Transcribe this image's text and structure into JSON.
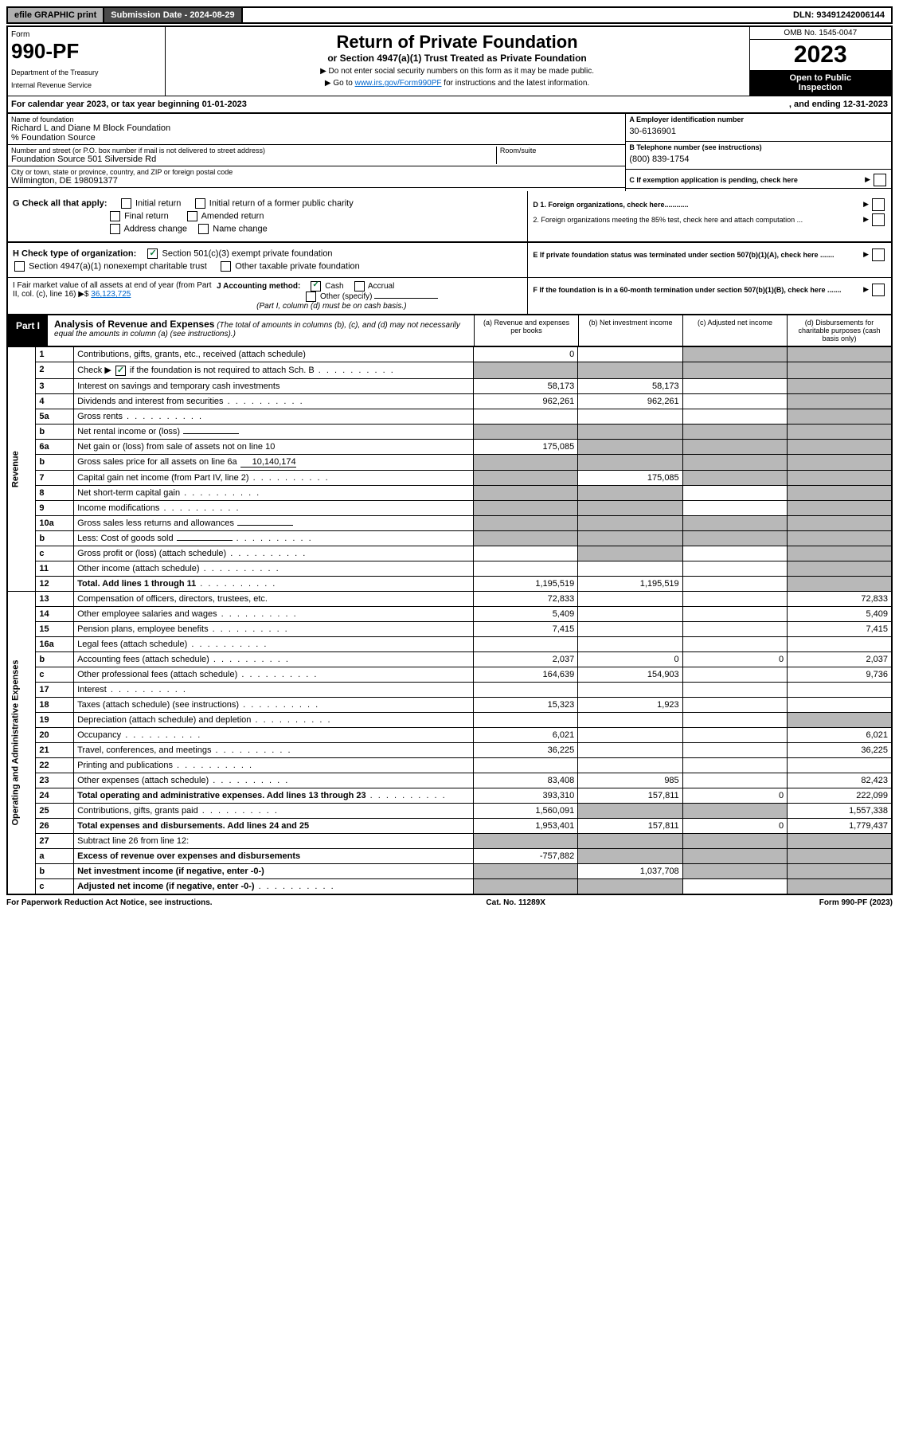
{
  "topbar": {
    "efile": "efile GRAPHIC print",
    "sub_date_label": "Submission Date - 2024-08-29",
    "dln_label": "DLN: 93491242006144"
  },
  "header": {
    "form_label": "Form",
    "form_num": "990-PF",
    "dept": "Department of the Treasury",
    "irs": "Internal Revenue Service",
    "title": "Return of Private Foundation",
    "subtitle": "or Section 4947(a)(1) Trust Treated as Private Foundation",
    "note1": "▶ Do not enter social security numbers on this form as it may be made public.",
    "note2_pre": "▶ Go to ",
    "note2_link": "www.irs.gov/Form990PF",
    "note2_post": " for instructions and the latest information.",
    "omb": "OMB No. 1545-0047",
    "year": "2023",
    "inspection1": "Open to Public",
    "inspection2": "Inspection"
  },
  "cal_year": {
    "left": "For calendar year 2023, or tax year beginning 01-01-2023",
    "right": ", and ending 12-31-2023"
  },
  "ident": {
    "name_label": "Name of foundation",
    "name": "Richard L and Diane M Block Foundation",
    "care_of": "% Foundation Source",
    "addr_label": "Number and street (or P.O. box number if mail is not delivered to street address)",
    "addr": "Foundation Source 501 Silverside Rd",
    "room_label": "Room/suite",
    "city_label": "City or town, state or province, country, and ZIP or foreign postal code",
    "city": "Wilmington, DE  198091377",
    "a_label": "A Employer identification number",
    "a_val": "30-6136901",
    "b_label": "B Telephone number (see instructions)",
    "b_val": "(800) 839-1754",
    "c_label": "C If exemption application is pending, check here"
  },
  "checks": {
    "g_label": "G Check all that apply:",
    "g_items": [
      "Initial return",
      "Initial return of a former public charity",
      "Final return",
      "Amended return",
      "Address change",
      "Name change"
    ],
    "h_label": "H Check type of organization:",
    "h1": "Section 501(c)(3) exempt private foundation",
    "h2": "Section 4947(a)(1) nonexempt charitable trust",
    "h3": "Other taxable private foundation",
    "i_label": "I Fair market value of all assets at end of year (from Part II, col. (c), line 16) ▶$",
    "i_val": "36,123,725",
    "j_label": "J Accounting method:",
    "j_cash": "Cash",
    "j_accrual": "Accrual",
    "j_other": "Other (specify)",
    "j_note": "(Part I, column (d) must be on cash basis.)",
    "d1": "D 1. Foreign organizations, check here............",
    "d2": "2. Foreign organizations meeting the 85% test, check here and attach computation ...",
    "e": "E  If private foundation status was terminated under section 507(b)(1)(A), check here .......",
    "f": "F  If the foundation is in a 60-month termination under section 507(b)(1)(B), check here .......  "
  },
  "part1": {
    "tab": "Part I",
    "title": "Analysis of Revenue and Expenses",
    "note": "(The total of amounts in columns (b), (c), and (d) may not necessarily equal the amounts in column (a) (see instructions).)",
    "col_a": "(a) Revenue and expenses per books",
    "col_b": "(b) Net investment income",
    "col_c": "(c) Adjusted net income",
    "col_d": "(d) Disbursements for charitable purposes (cash basis only)",
    "side_rev": "Revenue",
    "side_exp": "Operating and Administrative Expenses"
  },
  "rows": [
    {
      "n": "1",
      "d": "Contributions, gifts, grants, etc., received (attach schedule)",
      "a": "0",
      "b": "",
      "c": "s",
      "dd": "s"
    },
    {
      "n": "2",
      "d": "Check ▶ ☑ if the foundation is not required to attach Sch. B",
      "dots": 1,
      "a": "s",
      "b": "s",
      "c": "s",
      "dd": "s"
    },
    {
      "n": "3",
      "d": "Interest on savings and temporary cash investments",
      "a": "58,173",
      "b": "58,173",
      "c": "",
      "dd": "s"
    },
    {
      "n": "4",
      "d": "Dividends and interest from securities",
      "dots": 1,
      "a": "962,261",
      "b": "962,261",
      "c": "",
      "dd": "s"
    },
    {
      "n": "5a",
      "d": "Gross rents",
      "dots": 1,
      "a": "",
      "b": "",
      "c": "",
      "dd": "s"
    },
    {
      "n": "b",
      "d": "Net rental income or (loss)",
      "inline": "",
      "a": "s",
      "b": "s",
      "c": "s",
      "dd": "s"
    },
    {
      "n": "6a",
      "d": "Net gain or (loss) from sale of assets not on line 10",
      "a": "175,085",
      "b": "s",
      "c": "s",
      "dd": "s"
    },
    {
      "n": "b",
      "d": "Gross sales price for all assets on line 6a",
      "inline": "10,140,174",
      "a": "s",
      "b": "s",
      "c": "s",
      "dd": "s"
    },
    {
      "n": "7",
      "d": "Capital gain net income (from Part IV, line 2)",
      "dots": 1,
      "a": "s",
      "b": "175,085",
      "c": "s",
      "dd": "s"
    },
    {
      "n": "8",
      "d": "Net short-term capital gain",
      "dots": 1,
      "a": "s",
      "b": "s",
      "c": "",
      "dd": "s"
    },
    {
      "n": "9",
      "d": "Income modifications",
      "dots": 1,
      "a": "s",
      "b": "s",
      "c": "",
      "dd": "s"
    },
    {
      "n": "10a",
      "d": "Gross sales less returns and allowances",
      "inline": "",
      "a": "s",
      "b": "s",
      "c": "s",
      "dd": "s"
    },
    {
      "n": "b",
      "d": "Less: Cost of goods sold",
      "dots": 1,
      "inline": "",
      "a": "s",
      "b": "s",
      "c": "s",
      "dd": "s"
    },
    {
      "n": "c",
      "d": "Gross profit or (loss) (attach schedule)",
      "dots": 1,
      "a": "",
      "b": "s",
      "c": "",
      "dd": "s"
    },
    {
      "n": "11",
      "d": "Other income (attach schedule)",
      "dots": 1,
      "a": "",
      "b": "",
      "c": "",
      "dd": "s"
    },
    {
      "n": "12",
      "d": "Total. Add lines 1 through 11",
      "dots": 1,
      "bold": 1,
      "a": "1,195,519",
      "b": "1,195,519",
      "c": "",
      "dd": "s"
    },
    {
      "n": "13",
      "d": "Compensation of officers, directors, trustees, etc.",
      "a": "72,833",
      "b": "",
      "c": "",
      "dd": "72,833"
    },
    {
      "n": "14",
      "d": "Other employee salaries and wages",
      "dots": 1,
      "a": "5,409",
      "b": "",
      "c": "",
      "dd": "5,409"
    },
    {
      "n": "15",
      "d": "Pension plans, employee benefits",
      "dots": 1,
      "a": "7,415",
      "b": "",
      "c": "",
      "dd": "7,415"
    },
    {
      "n": "16a",
      "d": "Legal fees (attach schedule)",
      "dots": 1,
      "a": "",
      "b": "",
      "c": "",
      "dd": ""
    },
    {
      "n": "b",
      "d": "Accounting fees (attach schedule)",
      "dots": 1,
      "a": "2,037",
      "b": "0",
      "c": "0",
      "dd": "2,037"
    },
    {
      "n": "c",
      "d": "Other professional fees (attach schedule)",
      "dots": 1,
      "a": "164,639",
      "b": "154,903",
      "c": "",
      "dd": "9,736"
    },
    {
      "n": "17",
      "d": "Interest",
      "dots": 1,
      "a": "",
      "b": "",
      "c": "",
      "dd": ""
    },
    {
      "n": "18",
      "d": "Taxes (attach schedule) (see instructions)",
      "dots": 1,
      "a": "15,323",
      "b": "1,923",
      "c": "",
      "dd": ""
    },
    {
      "n": "19",
      "d": "Depreciation (attach schedule) and depletion",
      "dots": 1,
      "a": "",
      "b": "",
      "c": "",
      "dd": "s"
    },
    {
      "n": "20",
      "d": "Occupancy",
      "dots": 1,
      "a": "6,021",
      "b": "",
      "c": "",
      "dd": "6,021"
    },
    {
      "n": "21",
      "d": "Travel, conferences, and meetings",
      "dots": 1,
      "a": "36,225",
      "b": "",
      "c": "",
      "dd": "36,225"
    },
    {
      "n": "22",
      "d": "Printing and publications",
      "dots": 1,
      "a": "",
      "b": "",
      "c": "",
      "dd": ""
    },
    {
      "n": "23",
      "d": "Other expenses (attach schedule)",
      "dots": 1,
      "a": "83,408",
      "b": "985",
      "c": "",
      "dd": "82,423"
    },
    {
      "n": "24",
      "d": "Total operating and administrative expenses. Add lines 13 through 23",
      "dots": 1,
      "bold": 1,
      "a": "393,310",
      "b": "157,811",
      "c": "0",
      "dd": "222,099"
    },
    {
      "n": "25",
      "d": "Contributions, gifts, grants paid",
      "dots": 1,
      "a": "1,560,091",
      "b": "s",
      "c": "s",
      "dd": "1,557,338"
    },
    {
      "n": "26",
      "d": "Total expenses and disbursements. Add lines 24 and 25",
      "bold": 1,
      "a": "1,953,401",
      "b": "157,811",
      "c": "0",
      "dd": "1,779,437"
    },
    {
      "n": "27",
      "d": "Subtract line 26 from line 12:",
      "a": "s",
      "b": "s",
      "c": "s",
      "dd": "s"
    },
    {
      "n": "a",
      "d": "Excess of revenue over expenses and disbursements",
      "bold": 1,
      "a": "-757,882",
      "b": "s",
      "c": "s",
      "dd": "s"
    },
    {
      "n": "b",
      "d": "Net investment income (if negative, enter -0-)",
      "bold": 1,
      "a": "s",
      "b": "1,037,708",
      "c": "s",
      "dd": "s"
    },
    {
      "n": "c",
      "d": "Adjusted net income (if negative, enter -0-)",
      "dots": 1,
      "bold": 1,
      "a": "s",
      "b": "s",
      "c": "",
      "dd": "s"
    }
  ],
  "footer": {
    "left": "For Paperwork Reduction Act Notice, see instructions.",
    "mid": "Cat. No. 11289X",
    "right": "Form 990-PF (2023)"
  }
}
